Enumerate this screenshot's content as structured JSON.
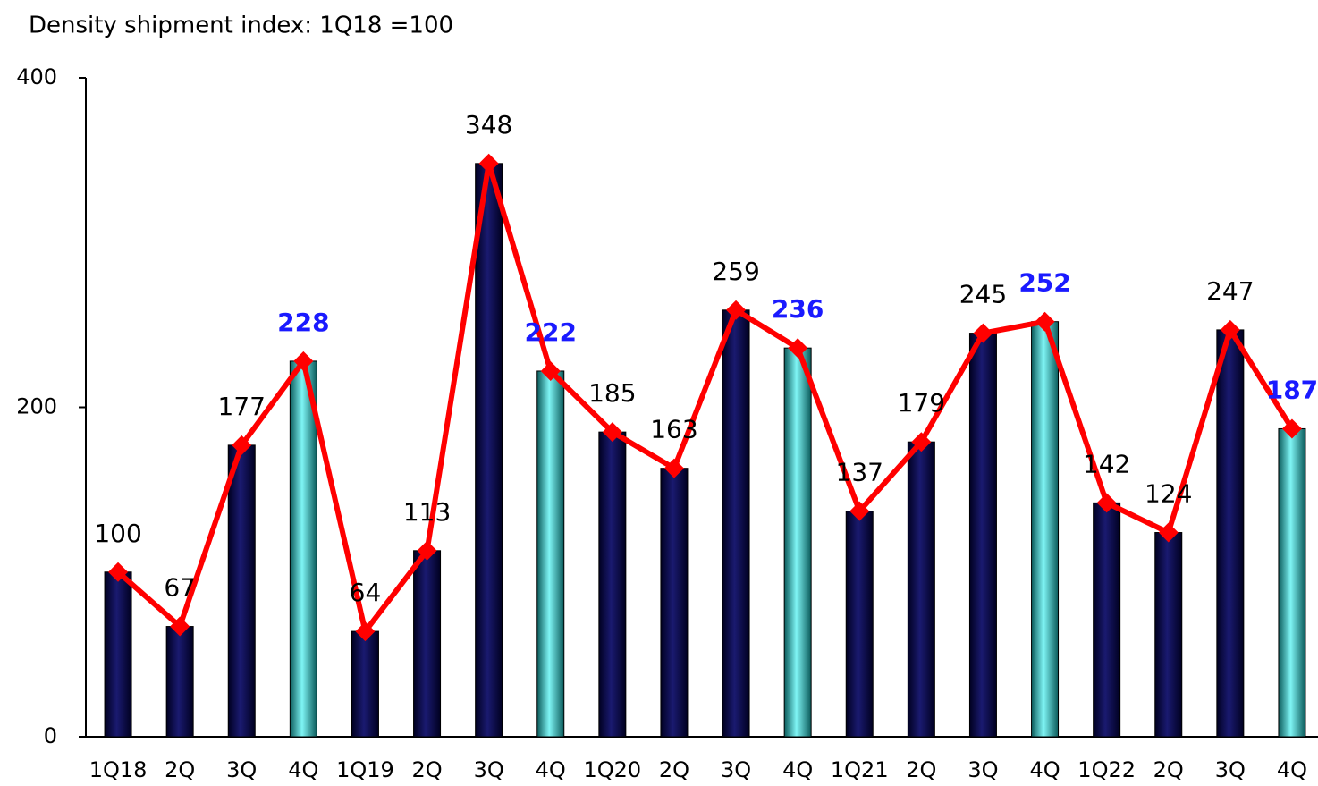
{
  "chart_data": {
    "type": "bar",
    "title": "Density shipment index: 1Q18 =100",
    "categories": [
      "1Q18",
      "2Q",
      "3Q",
      "4Q",
      "1Q19",
      "2Q",
      "3Q",
      "4Q",
      "1Q20",
      "2Q",
      "3Q",
      "4Q",
      "1Q21",
      "2Q",
      "3Q",
      "4Q",
      "1Q22",
      "2Q",
      "3Q",
      "4Q"
    ],
    "series": [
      {
        "values": [
          100,
          67,
          177,
          228,
          64,
          113,
          348,
          222,
          185,
          163,
          259,
          236,
          137,
          179,
          245,
          252,
          142,
          124,
          247,
          187
        ],
        "color": "#0b0b4f",
        "highlight_color": "#3fe0e0",
        "line_color": "#ff0000",
        "label_highlight_color": "#1a1aff",
        "highlight": [
          false,
          false,
          false,
          true,
          false,
          false,
          false,
          true,
          false,
          false,
          false,
          true,
          false,
          false,
          false,
          true,
          false,
          false,
          false,
          true
        ]
      }
    ],
    "ylim": [
      0,
      400
    ],
    "yticks": [
      0,
      200,
      400
    ],
    "grid": false
  }
}
